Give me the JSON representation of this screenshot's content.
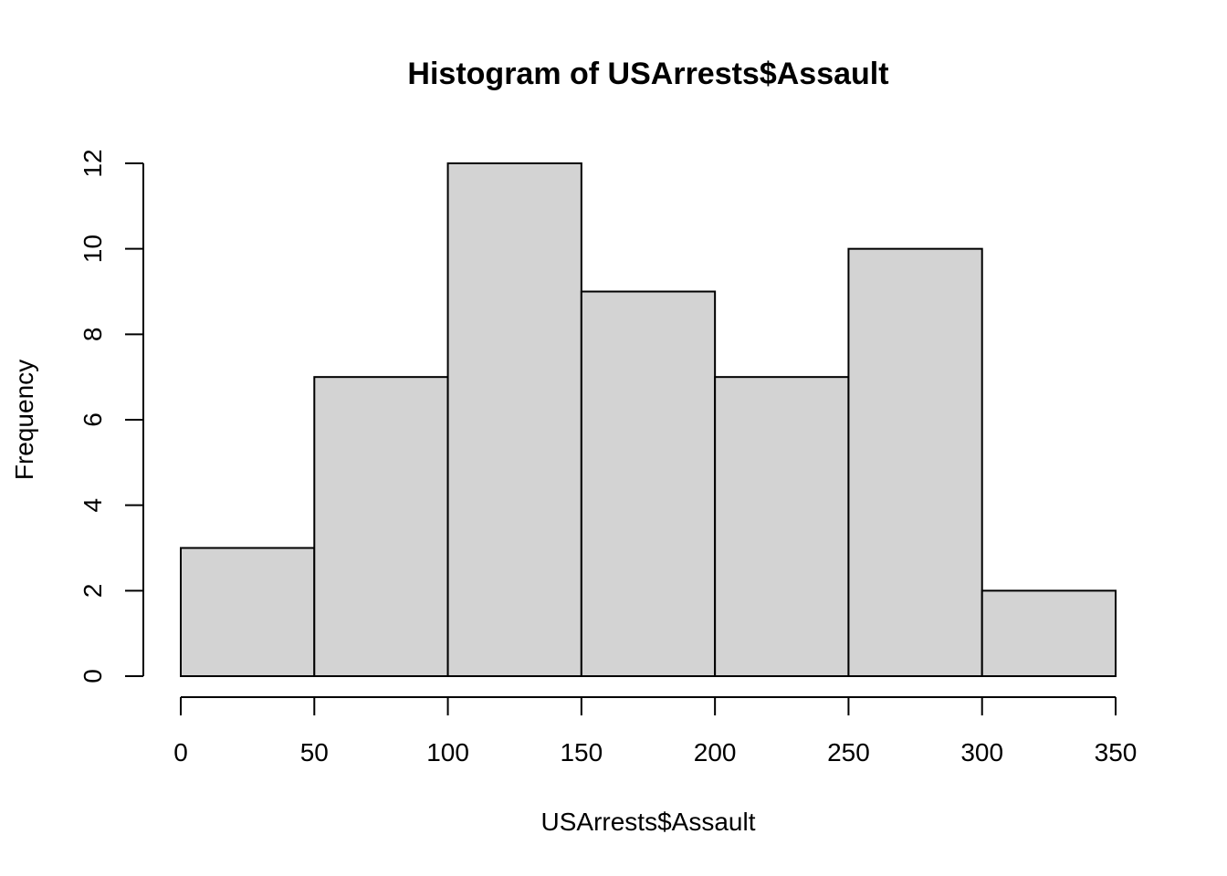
{
  "chart_data": {
    "type": "bar",
    "title": "Histogram of USArrests$Assault",
    "xlabel": "USArrests$Assault",
    "ylabel": "Frequency",
    "bins": [
      {
        "from": 0,
        "to": 50,
        "count": 3
      },
      {
        "from": 50,
        "to": 100,
        "count": 7
      },
      {
        "from": 100,
        "to": 150,
        "count": 12
      },
      {
        "from": 150,
        "to": 200,
        "count": 9
      },
      {
        "from": 200,
        "to": 250,
        "count": 7
      },
      {
        "from": 250,
        "to": 300,
        "count": 10
      },
      {
        "from": 300,
        "to": 350,
        "count": 2
      }
    ],
    "xticks": [
      0,
      50,
      100,
      150,
      200,
      250,
      300,
      350
    ],
    "yticks": [
      0,
      2,
      4,
      6,
      8,
      10,
      12
    ],
    "xlim": [
      0,
      350
    ],
    "ylim": [
      0,
      12
    ],
    "grid": false,
    "bar_color": "#d3d3d3",
    "edge_color": "#000000"
  }
}
